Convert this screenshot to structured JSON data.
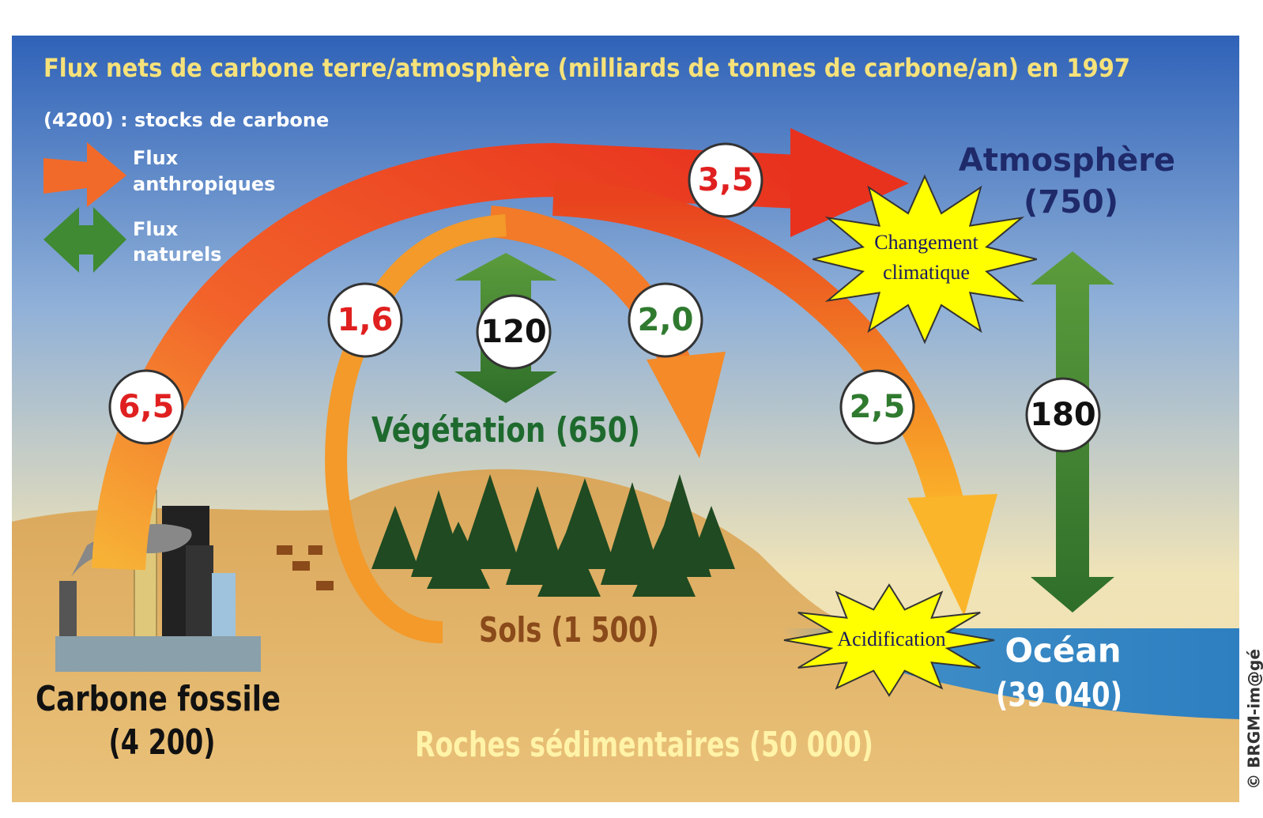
{
  "title": "Flux nets de carbone terre/atmosphère (milliards de tonnes de carbone/an) en 1997",
  "legend": {
    "stocks": "(4200) : stocks de carbone",
    "anthropic": [
      "Flux",
      "anthropiques"
    ],
    "natural": [
      "Flux",
      "naturels"
    ]
  },
  "fluxes": [
    "3,5",
    "1,6",
    "120",
    "2,0",
    "6,5",
    "2,5",
    "180"
  ],
  "reservoirs": {
    "atmosphere": [
      "Atmosphère",
      "(750)"
    ],
    "vegetation": "Végétation (650)",
    "soils": "Sols (1 500)",
    "ocean": [
      "Océan",
      "(39 040)"
    ],
    "fossil": [
      "Carbone fossile",
      "(4 200)"
    ],
    "rocks": "Roches sédimentaires (50 000)"
  },
  "impacts": {
    "climate": [
      "Changement",
      "climatique"
    ],
    "acidification": "Acidification"
  },
  "credit": "© BRGM-im@gé"
}
